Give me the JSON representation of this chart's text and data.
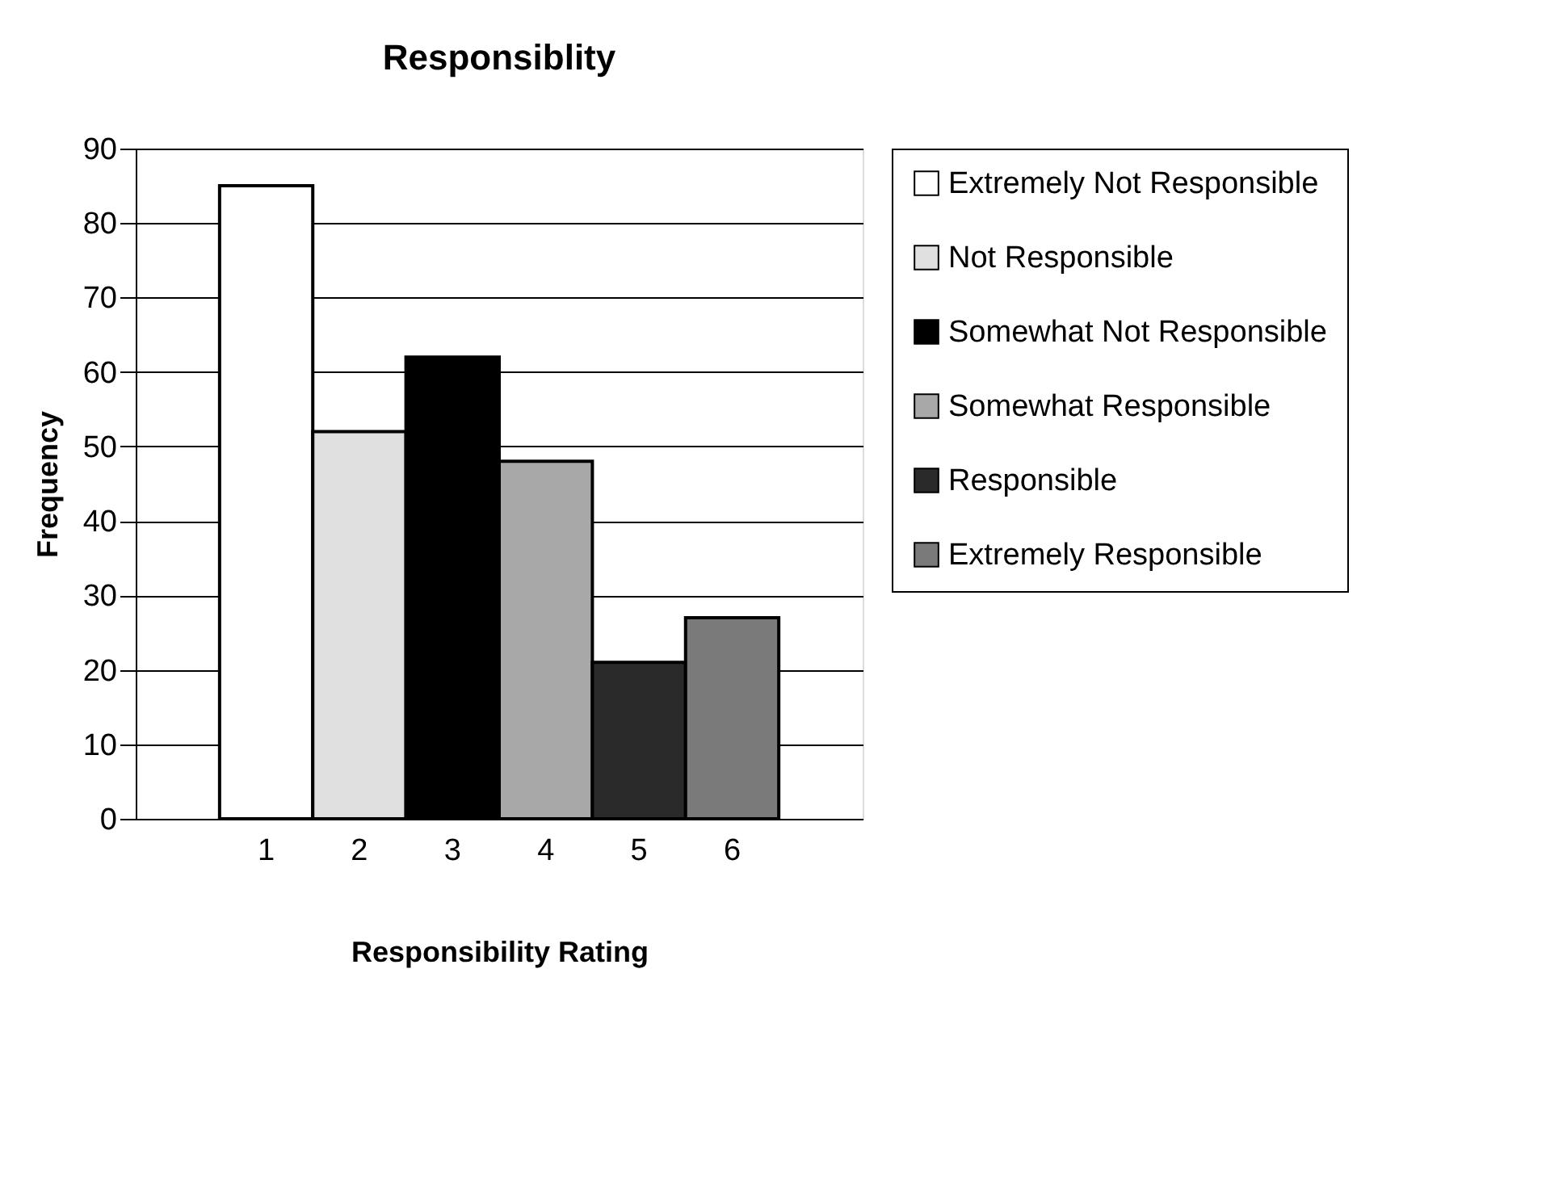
{
  "chart_data": {
    "type": "bar",
    "title": "Responsiblity",
    "xlabel": "Responsibility Rating",
    "ylabel": "Frequency",
    "categories": [
      "1",
      "2",
      "3",
      "4",
      "5",
      "6"
    ],
    "series": [
      {
        "name": "Extremely Not Responsible",
        "color": "#ffffff",
        "values": [
          85,
          null,
          null,
          null,
          null,
          null
        ]
      },
      {
        "name": "Not Responsible",
        "color": "#e0e0e0",
        "values": [
          null,
          52,
          null,
          null,
          null,
          null
        ]
      },
      {
        "name": "Somewhat Not Responsible",
        "color": "#000000",
        "values": [
          null,
          null,
          62,
          null,
          null,
          null
        ]
      },
      {
        "name": "Somewhat Responsible",
        "color": "#a8a8a8",
        "values": [
          null,
          null,
          null,
          48,
          null,
          null
        ]
      },
      {
        "name": "Responsible",
        "color": "#2a2a2a",
        "values": [
          null,
          null,
          null,
          null,
          21,
          null
        ]
      },
      {
        "name": "Extremely Responsible",
        "color": "#7a7a7a",
        "values": [
          null,
          null,
          null,
          null,
          null,
          27
        ]
      }
    ],
    "ylim": [
      0,
      90
    ],
    "yticks": [
      0,
      10,
      20,
      30,
      40,
      50,
      60,
      70,
      80,
      90
    ],
    "grid": "y",
    "legend": "right"
  }
}
